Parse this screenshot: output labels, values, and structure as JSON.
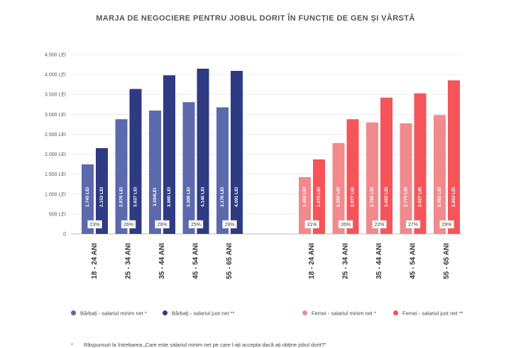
{
  "chart_data": {
    "type": "bar",
    "title": "MARJA DE NEGOCIERE PENTRU JOBUL DORIT ÎN FUNCȚIE DE GEN ȘI VÂRSTĂ",
    "ylim": [
      0,
      4500
    ],
    "yticks": [
      0,
      500,
      1000,
      1500,
      2000,
      2500,
      3000,
      3500,
      4000,
      4500
    ],
    "ytick_labels": [
      "0",
      "500 LEI",
      "1.000 LEI",
      "1.500 LEI",
      "2.000 LEI",
      "2.500 LEI",
      "3.000 LEI",
      "3.500 LEI",
      "4.000 LEI",
      "4.500 LEI"
    ],
    "categories": [
      "18 - 24 ANI",
      "25 - 34 ANI",
      "35 - 44 ANI",
      "45 - 54 ANI",
      "55 - 65 ANI"
    ],
    "groups": [
      {
        "name": "Bărbați",
        "series": [
          {
            "name": "Bărbați - salariul minim net *",
            "color": "#5b69ad",
            "values": [
              1745,
              2878,
              3094,
              3306,
              3176
            ],
            "labels": [
              "1.745 LEI",
              "2.878 LEI",
              "3.094LEI",
              "3.306 LEI",
              "3.176 LEI"
            ]
          },
          {
            "name": "Bărbați - salariul just net **",
            "color": "#2e3a82",
            "values": [
              2153,
              3637,
              3980,
              4146,
              4091
            ],
            "labels": [
              "2.153 LEI",
              "3.637 LEI",
              "3.980 LEI",
              "4.146 LEI",
              "4.091 LEI"
            ]
          }
        ],
        "margins": [
          "23%",
          "26%",
          "29%",
          "25%",
          "29%"
        ]
      },
      {
        "name": "Femei",
        "series": [
          {
            "name": "Femei - salariul minim net *",
            "color": "#f08a8c",
            "values": [
              1426,
              2280,
              2798,
              2775,
              2982
            ],
            "labels": [
              "1.426 LEI",
              "2.280 LEI",
              "2.798 LEI",
              "2.775 LEI",
              "2.982 LEI"
            ]
          },
          {
            "name": "Femei - salariul just net **",
            "color": "#f5545a",
            "values": [
              1870,
              2877,
              3420,
              3527,
              3853
            ],
            "labels": [
              "1.870 LEI",
              "2.877 LEI",
              "3.420 LEI",
              "3.527 LEI",
              "3.853 LEI"
            ]
          }
        ],
        "margins": [
          "31%",
          "26%",
          "22%",
          "27%",
          "29%"
        ]
      }
    ]
  },
  "legend": [
    {
      "label": "Bărbați - salariul minim net *",
      "color": "#5b69ad"
    },
    {
      "label": "Bărbați - salariul just net **",
      "color": "#2e3a82"
    },
    {
      "label": "Femei - salariul minim net *",
      "color": "#f08a8c"
    },
    {
      "label": "Femei - salariul just net **",
      "color": "#f5545a"
    }
  ],
  "footnote": {
    "marker": "*",
    "text": "Răspunsuri la întrebarea „Care este salariul minim net pe care l-ați accepta dacă ați obține jobul dorit?”"
  }
}
